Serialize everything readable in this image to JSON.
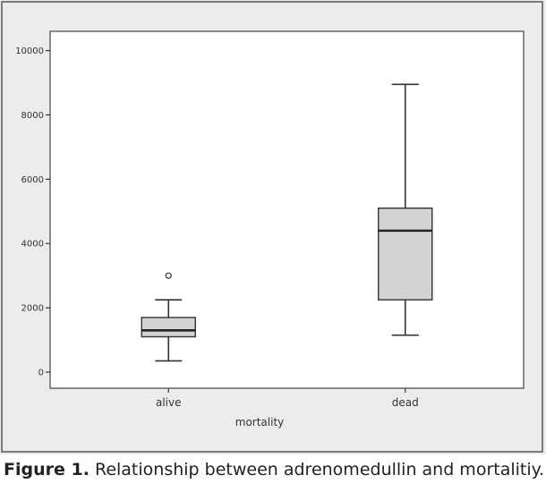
{
  "chart_data": {
    "type": "boxplot",
    "xlabel": "mortality",
    "ylabel": "",
    "ylim": [
      -500,
      10600
    ],
    "yticks": [
      0,
      2000,
      4000,
      6000,
      8000,
      10000
    ],
    "categories": [
      "alive",
      "dead"
    ],
    "boxes": [
      {
        "category": "alive",
        "whisker_low": 350,
        "q1": 1100,
        "median": 1300,
        "q3": 1700,
        "whisker_high": 2250,
        "outliers": [
          3000
        ]
      },
      {
        "category": "dead",
        "whisker_low": 1150,
        "q1": 2250,
        "median": 4400,
        "q3": 5100,
        "whisker_high": 8950,
        "outliers": []
      }
    ],
    "grid": false,
    "legend": "none"
  },
  "colors": {
    "frame_background": "#ececec",
    "plot_background": "#ffffff",
    "box_fill": "#d3d3d3",
    "stroke": "#333333"
  },
  "caption": {
    "label": "Figure 1.",
    "text": " Relationship between adrenomedullin and mortalitiy."
  }
}
